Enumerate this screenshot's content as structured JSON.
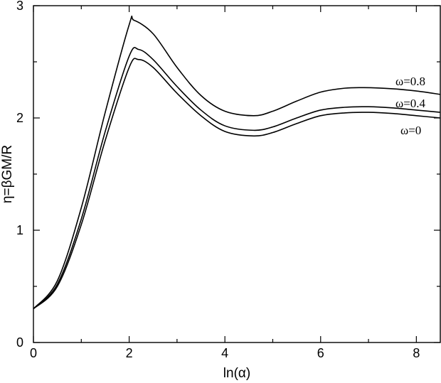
{
  "chart_data": {
    "type": "line",
    "xlabel": "ln(α)",
    "ylabel": "η=βGM/R",
    "xlim": [
      0,
      8.5
    ],
    "ylim": [
      0,
      3
    ],
    "xticks": [
      0,
      2,
      4,
      6,
      8
    ],
    "yticks": [
      0,
      1,
      2,
      3
    ],
    "grid": false,
    "series": [
      {
        "name": "ω=0",
        "x": [
          0,
          0.5,
          1.0,
          1.5,
          2.0,
          2.2,
          2.5,
          3.0,
          3.5,
          4.0,
          4.6,
          5.0,
          5.5,
          6.0,
          6.5,
          7.0,
          7.5,
          8.0,
          8.5
        ],
        "y": [
          0.3,
          0.5,
          1.05,
          1.8,
          2.45,
          2.52,
          2.45,
          2.22,
          2.02,
          1.88,
          1.84,
          1.87,
          1.95,
          2.02,
          2.045,
          2.05,
          2.04,
          2.02,
          2.0
        ]
      },
      {
        "name": "ω=0.4",
        "x": [
          0,
          0.5,
          1.0,
          1.5,
          2.0,
          2.2,
          2.5,
          3.0,
          3.5,
          4.0,
          4.6,
          5.0,
          5.5,
          6.0,
          6.5,
          7.0,
          7.5,
          8.0,
          8.5
        ],
        "y": [
          0.3,
          0.52,
          1.1,
          1.88,
          2.55,
          2.61,
          2.52,
          2.28,
          2.07,
          1.93,
          1.89,
          1.92,
          2.0,
          2.07,
          2.095,
          2.1,
          2.09,
          2.07,
          2.05
        ]
      },
      {
        "name": "ω=0.8",
        "x": [
          0,
          0.5,
          1.0,
          1.5,
          2.0,
          2.1,
          2.5,
          3.0,
          3.5,
          4.0,
          4.6,
          5.0,
          5.5,
          6.0,
          6.5,
          6.9,
          7.5,
          8.0,
          8.5
        ],
        "y": [
          0.3,
          0.55,
          1.2,
          2.05,
          2.83,
          2.87,
          2.75,
          2.45,
          2.2,
          2.06,
          2.02,
          2.06,
          2.15,
          2.23,
          2.265,
          2.27,
          2.26,
          2.24,
          2.21
        ]
      }
    ]
  }
}
